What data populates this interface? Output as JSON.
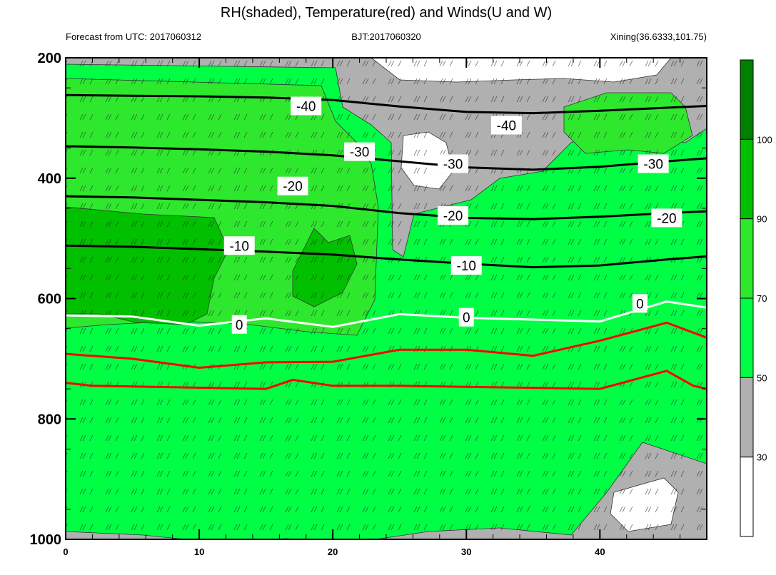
{
  "chart_data": {
    "type": "heatmap",
    "title": "RH(shaded), Temperature(red) and Winds(U and W)",
    "subtitle_left": "Forecast from UTC: 2017060312",
    "subtitle_center": "BJT:2017060320",
    "subtitle_right": "Xining(36.6333,101.75)",
    "x_range": [
      0,
      48
    ],
    "x_ticks": [
      "0",
      "10",
      "20",
      "30",
      "40"
    ],
    "x_tick_values": [
      0,
      10,
      20,
      30,
      40
    ],
    "y_range": [
      200,
      1000
    ],
    "y_reversed": true,
    "y_ticks": [
      "200",
      "400",
      "600",
      "800",
      "1000"
    ],
    "y_tick_values": [
      200,
      400,
      600,
      800,
      1000
    ],
    "colorbar": {
      "levels": [
        "30",
        "50",
        "70",
        "90",
        "100"
      ],
      "level_values": [
        30,
        50,
        70,
        90,
        100
      ],
      "colors": [
        "#ffffff",
        "#b0b0b0",
        "#00ff44",
        "#2ee82e",
        "#00c000",
        "#008000"
      ]
    },
    "temperature_contours": [
      {
        "label": "-40",
        "color": "#000000",
        "points": [
          [
            0,
            262
          ],
          [
            5,
            263
          ],
          [
            10,
            264
          ],
          [
            15,
            266
          ],
          [
            20,
            270
          ],
          [
            25,
            281
          ],
          [
            30,
            290
          ],
          [
            35,
            292
          ],
          [
            40,
            288
          ],
          [
            45,
            283
          ],
          [
            48,
            280
          ]
        ],
        "labels_at": [
          [
            18,
            280
          ],
          [
            33,
            312
          ]
        ]
      },
      {
        "label": "-30",
        "color": "#000000",
        "points": [
          [
            0,
            347
          ],
          [
            5,
            349
          ],
          [
            10,
            352
          ],
          [
            15,
            356
          ],
          [
            20,
            362
          ],
          [
            25,
            372
          ],
          [
            30,
            382
          ],
          [
            35,
            386
          ],
          [
            40,
            381
          ],
          [
            45,
            372
          ],
          [
            48,
            367
          ]
        ],
        "labels_at": [
          [
            22,
            356
          ],
          [
            29,
            376
          ],
          [
            44,
            376
          ]
        ]
      },
      {
        "label": "-20",
        "color": "#000000",
        "points": [
          [
            0,
            430
          ],
          [
            5,
            432
          ],
          [
            10,
            436
          ],
          [
            15,
            440
          ],
          [
            20,
            446
          ],
          [
            25,
            458
          ],
          [
            30,
            466
          ],
          [
            35,
            468
          ],
          [
            40,
            464
          ],
          [
            45,
            458
          ],
          [
            48,
            455
          ]
        ],
        "labels_at": [
          [
            17,
            413
          ],
          [
            29,
            462
          ],
          [
            45,
            466
          ]
        ]
      },
      {
        "label": "-10",
        "color": "#000000",
        "points": [
          [
            0,
            512
          ],
          [
            5,
            514
          ],
          [
            10,
            518
          ],
          [
            15,
            522
          ],
          [
            20,
            527
          ],
          [
            25,
            535
          ],
          [
            30,
            542
          ],
          [
            35,
            548
          ],
          [
            40,
            545
          ],
          [
            45,
            535
          ],
          [
            48,
            530
          ]
        ],
        "labels_at": [
          [
            13,
            512
          ],
          [
            30,
            545
          ]
        ]
      },
      {
        "label": "0",
        "color": "#ffffff",
        "points": [
          [
            0,
            628
          ],
          [
            5,
            630
          ],
          [
            10,
            645
          ],
          [
            15,
            633
          ],
          [
            20,
            647
          ],
          [
            25,
            626
          ],
          [
            30,
            632
          ],
          [
            35,
            635
          ],
          [
            40,
            638
          ],
          [
            45,
            605
          ],
          [
            48,
            615
          ]
        ],
        "labels_at": [
          [
            13,
            643
          ],
          [
            30,
            631
          ],
          [
            43,
            608
          ]
        ]
      },
      {
        "label": "",
        "color": "#ff0000",
        "points": [
          [
            0,
            692
          ],
          [
            5,
            700
          ],
          [
            10,
            715
          ],
          [
            15,
            706
          ],
          [
            20,
            705
          ],
          [
            25,
            685
          ],
          [
            30,
            685
          ],
          [
            35,
            695
          ],
          [
            40,
            670
          ],
          [
            45,
            640
          ],
          [
            48,
            665
          ]
        ],
        "labels_at": []
      },
      {
        "label": "",
        "color": "#ff0000",
        "points": [
          [
            0,
            740
          ],
          [
            2,
            745
          ],
          [
            15,
            750
          ],
          [
            17,
            735
          ],
          [
            20,
            745
          ],
          [
            25,
            745
          ],
          [
            40,
            750
          ],
          [
            45,
            720
          ],
          [
            47,
            745
          ],
          [
            48,
            750
          ]
        ],
        "labels_at": []
      }
    ]
  }
}
